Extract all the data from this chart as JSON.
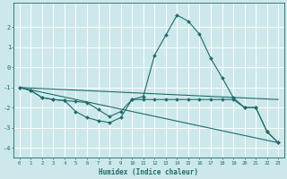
{
  "title": "",
  "xlabel": "Humidex (Indice chaleur)",
  "ylabel": "",
  "bg_color": "#cce8ea",
  "grid_color": "#ffffff",
  "line_color": "#1e6b6b",
  "xlim": [
    -0.5,
    23.5
  ],
  "ylim": [
    -4.5,
    3.2
  ],
  "xticks": [
    0,
    1,
    2,
    3,
    4,
    5,
    6,
    7,
    8,
    9,
    10,
    11,
    12,
    13,
    14,
    15,
    16,
    17,
    18,
    19,
    20,
    21,
    22,
    23
  ],
  "yticks": [
    -4,
    -3,
    -2,
    -1,
    0,
    1,
    2
  ],
  "series": {
    "line_peak": {
      "x": [
        0,
        1,
        2,
        3,
        4,
        5,
        6,
        7,
        8,
        9,
        10,
        11,
        12,
        13,
        14,
        15,
        16,
        17,
        18,
        19,
        20,
        21,
        22,
        23
      ],
      "y": [
        -1.0,
        -1.15,
        -1.5,
        -1.6,
        -1.65,
        -2.2,
        -2.5,
        -2.65,
        -2.75,
        -2.5,
        -1.6,
        -1.45,
        0.6,
        1.6,
        2.6,
        2.3,
        1.65,
        0.45,
        -0.5,
        -1.5,
        -2.0,
        -2.0,
        -3.2,
        -3.75
      ]
    },
    "line_flat": {
      "x": [
        0,
        1,
        2,
        3,
        4,
        5,
        6,
        7,
        8,
        9,
        10,
        11,
        12,
        13,
        14,
        15,
        16,
        17,
        18,
        19,
        20,
        21,
        22,
        23
      ],
      "y": [
        -1.0,
        -1.15,
        -1.5,
        -1.6,
        -1.65,
        -1.7,
        -1.75,
        -2.1,
        -2.45,
        -2.2,
        -1.6,
        -1.6,
        -1.6,
        -1.6,
        -1.6,
        -1.6,
        -1.6,
        -1.6,
        -1.6,
        -1.6,
        -2.0,
        -2.0,
        -3.2,
        -3.75
      ]
    },
    "line_diag": {
      "x": [
        0,
        23
      ],
      "y": [
        -1.0,
        -3.75
      ]
    },
    "line_horiz": {
      "x": [
        0,
        23
      ],
      "y": [
        -1.0,
        -1.6
      ]
    }
  }
}
